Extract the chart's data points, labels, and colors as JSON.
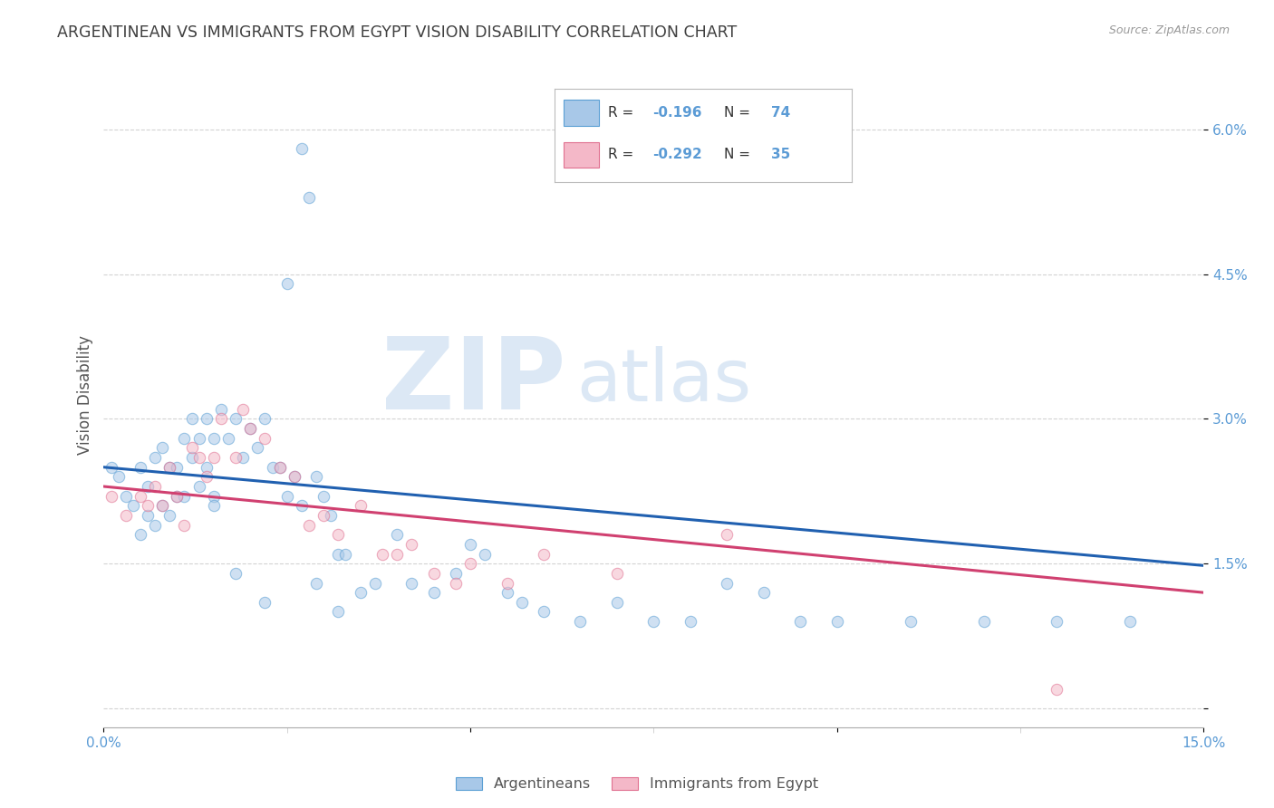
{
  "title": "ARGENTINEAN VS IMMIGRANTS FROM EGYPT VISION DISABILITY CORRELATION CHART",
  "source": "Source: ZipAtlas.com",
  "ylabel": "Vision Disability",
  "yticks": [
    0.0,
    0.015,
    0.03,
    0.045,
    0.06
  ],
  "ytick_labels": [
    "",
    "1.5%",
    "3.0%",
    "4.5%",
    "6.0%"
  ],
  "xlim": [
    0.0,
    0.15
  ],
  "ylim": [
    -0.002,
    0.067
  ],
  "watermark_zip": "ZIP",
  "watermark_atlas": "atlas",
  "legend_r1": "R = ",
  "legend_v1": "-0.196",
  "legend_n1": "  N = ",
  "legend_nv1": "74",
  "legend_r2": "R = ",
  "legend_v2": "-0.292",
  "legend_n2": "  N = ",
  "legend_nv2": "35",
  "legend_label_argentineans": "Argentineans",
  "legend_label_egypt": "Immigrants from Egypt",
  "blue_scatter_x": [
    0.001,
    0.002,
    0.003,
    0.004,
    0.005,
    0.005,
    0.006,
    0.006,
    0.007,
    0.007,
    0.008,
    0.008,
    0.009,
    0.009,
    0.01,
    0.01,
    0.011,
    0.011,
    0.012,
    0.012,
    0.013,
    0.013,
    0.014,
    0.014,
    0.015,
    0.015,
    0.016,
    0.017,
    0.018,
    0.019,
    0.02,
    0.021,
    0.022,
    0.023,
    0.024,
    0.025,
    0.026,
    0.027,
    0.028,
    0.029,
    0.03,
    0.031,
    0.032,
    0.033,
    0.035,
    0.037,
    0.04,
    0.042,
    0.045,
    0.048,
    0.05,
    0.052,
    0.055,
    0.057,
    0.06,
    0.065,
    0.07,
    0.075,
    0.08,
    0.085,
    0.09,
    0.095,
    0.1,
    0.11,
    0.12,
    0.13,
    0.14,
    0.025,
    0.027,
    0.029,
    0.015,
    0.018,
    0.022,
    0.032
  ],
  "blue_scatter_y": [
    0.025,
    0.024,
    0.022,
    0.021,
    0.025,
    0.018,
    0.023,
    0.02,
    0.026,
    0.019,
    0.027,
    0.021,
    0.025,
    0.02,
    0.025,
    0.022,
    0.028,
    0.022,
    0.03,
    0.026,
    0.028,
    0.023,
    0.03,
    0.025,
    0.028,
    0.022,
    0.031,
    0.028,
    0.03,
    0.026,
    0.029,
    0.027,
    0.03,
    0.025,
    0.025,
    0.022,
    0.024,
    0.058,
    0.053,
    0.024,
    0.022,
    0.02,
    0.016,
    0.016,
    0.012,
    0.013,
    0.018,
    0.013,
    0.012,
    0.014,
    0.017,
    0.016,
    0.012,
    0.011,
    0.01,
    0.009,
    0.011,
    0.009,
    0.009,
    0.013,
    0.012,
    0.009,
    0.009,
    0.009,
    0.009,
    0.009,
    0.009,
    0.044,
    0.021,
    0.013,
    0.021,
    0.014,
    0.011,
    0.01
  ],
  "pink_scatter_x": [
    0.001,
    0.003,
    0.005,
    0.006,
    0.007,
    0.008,
    0.009,
    0.01,
    0.011,
    0.012,
    0.013,
    0.014,
    0.015,
    0.016,
    0.018,
    0.019,
    0.02,
    0.022,
    0.024,
    0.026,
    0.028,
    0.03,
    0.032,
    0.035,
    0.038,
    0.04,
    0.042,
    0.045,
    0.048,
    0.05,
    0.055,
    0.06,
    0.07,
    0.085,
    0.13
  ],
  "pink_scatter_y": [
    0.022,
    0.02,
    0.022,
    0.021,
    0.023,
    0.021,
    0.025,
    0.022,
    0.019,
    0.027,
    0.026,
    0.024,
    0.026,
    0.03,
    0.026,
    0.031,
    0.029,
    0.028,
    0.025,
    0.024,
    0.019,
    0.02,
    0.018,
    0.021,
    0.016,
    0.016,
    0.017,
    0.014,
    0.013,
    0.015,
    0.013,
    0.016,
    0.014,
    0.018,
    0.002
  ],
  "blue_line_start_y": 0.025,
  "blue_line_end_y": 0.0148,
  "pink_line_start_y": 0.023,
  "pink_line_end_y": 0.012,
  "blue_color": "#a8c8e8",
  "blue_edge_color": "#5a9fd4",
  "pink_color": "#f4b8c8",
  "pink_edge_color": "#e07090",
  "blue_line_color": "#2060b0",
  "pink_line_color": "#d04070",
  "background_color": "#ffffff",
  "grid_color": "#c8c8c8",
  "tick_label_color": "#5b9bd5",
  "title_color": "#404040",
  "scatter_size": 80,
  "scatter_alpha": 0.55,
  "watermark_color": "#dce8f5",
  "watermark_fontsize": 80
}
